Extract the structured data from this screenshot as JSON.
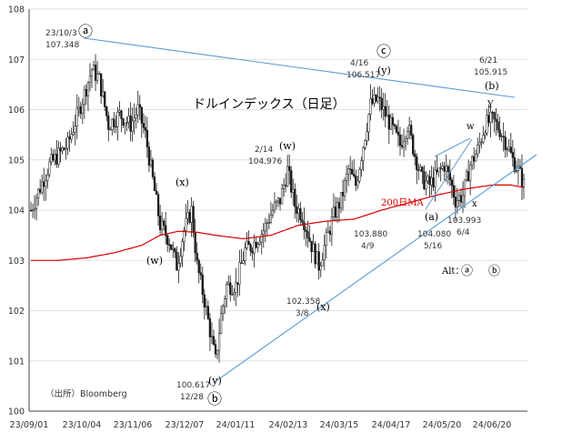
{
  "chart_data": {
    "type": "candlestick",
    "title": "ドルインデックス（日足）",
    "source": "（出所）Bloomberg",
    "ylim": [
      100,
      108
    ],
    "y_ticks": [
      "100",
      "101",
      "102",
      "103",
      "104",
      "105",
      "106",
      "107",
      "108"
    ],
    "x_labels": [
      "23/09/01",
      "23/10/04",
      "23/11/06",
      "23/12/07",
      "24/01/11",
      "24/02/13",
      "24/03/15",
      "24/04/17",
      "24/05/20",
      "24/06/20"
    ],
    "ma_label": "200日MA",
    "alt_label": "Alt：",
    "colors": {
      "candles": "#1a1a1a",
      "ma": "#d40000",
      "trend": "#5b9bd5",
      "axis": "#444444"
    },
    "points": [
      {
        "id": "p-a",
        "date": "23/10/3",
        "value": "107.348"
      },
      {
        "id": "p-b",
        "date": "12/28",
        "value": "100.617"
      },
      {
        "id": "p-w",
        "date": "2/14",
        "value": "104.976"
      },
      {
        "id": "p-x",
        "date": "3/8",
        "value": "102.358"
      },
      {
        "id": "p-c",
        "date": "4/16",
        "value": "106.517"
      },
      {
        "id": "p-a2",
        "date": "4/9",
        "value": "103.880"
      },
      {
        "id": "p-y2",
        "date": "5/16",
        "value": "104.080"
      },
      {
        "id": "p-x2",
        "date": "6/4",
        "value": "103.993"
      },
      {
        "id": "p-b2",
        "date": "6/21",
        "value": "105.915"
      }
    ],
    "wave_labels": [
      {
        "id": "w-a-circle",
        "text": "ⓐ"
      },
      {
        "id": "w-b-circle",
        "text": "ⓑ"
      },
      {
        "id": "w-c-circle",
        "text": "ⓒ"
      },
      {
        "id": "w-x1",
        "text": "(x)"
      },
      {
        "id": "w-w1",
        "text": "(w)"
      },
      {
        "id": "w-y1",
        "text": "(y)"
      },
      {
        "id": "w-w2",
        "text": "(w)"
      },
      {
        "id": "w-x2",
        "text": "(x)"
      },
      {
        "id": "w-y2",
        "text": "(y)"
      },
      {
        "id": "w-a-paren",
        "text": "(a)"
      },
      {
        "id": "w-b-paren",
        "text": "(b)"
      },
      {
        "id": "w-w-small",
        "text": "w"
      },
      {
        "id": "w-x-small",
        "text": "x"
      },
      {
        "id": "w-y-small",
        "text": "Y"
      },
      {
        "id": "alt-a",
        "text": "ⓐ"
      },
      {
        "id": "alt-b",
        "text": "ⓑ"
      }
    ],
    "anchors": [
      {
        "d": 0,
        "v": 104.0
      },
      {
        "d": 10,
        "v": 104.9
      },
      {
        "d": 20,
        "v": 105.3
      },
      {
        "d": 28,
        "v": 106.2
      },
      {
        "d": 33,
        "v": 106.8
      },
      {
        "d": 37,
        "v": 106.6
      },
      {
        "d": 42,
        "v": 105.7
      },
      {
        "d": 48,
        "v": 105.9
      },
      {
        "d": 54,
        "v": 105.7
      },
      {
        "d": 58,
        "v": 106.0
      },
      {
        "d": 62,
        "v": 105.5
      },
      {
        "d": 66,
        "v": 104.6
      },
      {
        "d": 70,
        "v": 103.7
      },
      {
        "d": 75,
        "v": 103.4
      },
      {
        "d": 79,
        "v": 102.9
      },
      {
        "d": 83,
        "v": 103.6
      },
      {
        "d": 87,
        "v": 104.0
      },
      {
        "d": 90,
        "v": 102.9
      },
      {
        "d": 94,
        "v": 102.2
      },
      {
        "d": 98,
        "v": 101.4
      },
      {
        "d": 100,
        "v": 101.0
      },
      {
        "d": 103,
        "v": 101.9
      },
      {
        "d": 106,
        "v": 102.5
      },
      {
        "d": 111,
        "v": 102.5
      },
      {
        "d": 116,
        "v": 103.2
      },
      {
        "d": 120,
        "v": 103.3
      },
      {
        "d": 126,
        "v": 103.6
      },
      {
        "d": 131,
        "v": 104.0
      },
      {
        "d": 135,
        "v": 104.2
      },
      {
        "d": 139,
        "v": 104.8
      },
      {
        "d": 143,
        "v": 104.1
      },
      {
        "d": 147,
        "v": 103.9
      },
      {
        "d": 152,
        "v": 103.3
      },
      {
        "d": 156,
        "v": 102.9
      },
      {
        "d": 160,
        "v": 103.4
      },
      {
        "d": 164,
        "v": 103.9
      },
      {
        "d": 168,
        "v": 104.2
      },
      {
        "d": 172,
        "v": 104.8
      },
      {
        "d": 176,
        "v": 104.5
      },
      {
        "d": 180,
        "v": 105.3
      },
      {
        "d": 184,
        "v": 106.1
      },
      {
        "d": 188,
        "v": 106.2
      },
      {
        "d": 192,
        "v": 105.9
      },
      {
        "d": 196,
        "v": 105.6
      },
      {
        "d": 200,
        "v": 105.3
      },
      {
        "d": 204,
        "v": 105.7
      },
      {
        "d": 208,
        "v": 105.1
      },
      {
        "d": 212,
        "v": 104.6
      },
      {
        "d": 216,
        "v": 104.5
      },
      {
        "d": 220,
        "v": 104.7
      },
      {
        "d": 224,
        "v": 104.9
      },
      {
        "d": 227,
        "v": 104.6
      },
      {
        "d": 230,
        "v": 104.2
      },
      {
        "d": 234,
        "v": 104.3
      },
      {
        "d": 238,
        "v": 104.9
      },
      {
        "d": 242,
        "v": 105.2
      },
      {
        "d": 246,
        "v": 105.7
      },
      {
        "d": 250,
        "v": 105.8
      },
      {
        "d": 254,
        "v": 105.6
      },
      {
        "d": 258,
        "v": 105.3
      },
      {
        "d": 261,
        "v": 105.0
      },
      {
        "d": 264,
        "v": 104.8
      },
      {
        "d": 267,
        "v": 104.5
      }
    ],
    "ma_values": [
      {
        "d": 0,
        "v": 103.0
      },
      {
        "d": 15,
        "v": 103.0
      },
      {
        "d": 30,
        "v": 103.05
      },
      {
        "d": 45,
        "v": 103.15
      },
      {
        "d": 60,
        "v": 103.3
      },
      {
        "d": 70,
        "v": 103.5
      },
      {
        "d": 80,
        "v": 103.58
      },
      {
        "d": 90,
        "v": 103.56
      },
      {
        "d": 100,
        "v": 103.5
      },
      {
        "d": 115,
        "v": 103.43
      },
      {
        "d": 130,
        "v": 103.5
      },
      {
        "d": 145,
        "v": 103.7
      },
      {
        "d": 160,
        "v": 103.78
      },
      {
        "d": 175,
        "v": 103.82
      },
      {
        "d": 190,
        "v": 104.0
      },
      {
        "d": 205,
        "v": 104.15
      },
      {
        "d": 220,
        "v": 104.3
      },
      {
        "d": 235,
        "v": 104.42
      },
      {
        "d": 250,
        "v": 104.5
      },
      {
        "d": 260,
        "v": 104.5
      },
      {
        "d": 267,
        "v": 104.45
      }
    ]
  }
}
